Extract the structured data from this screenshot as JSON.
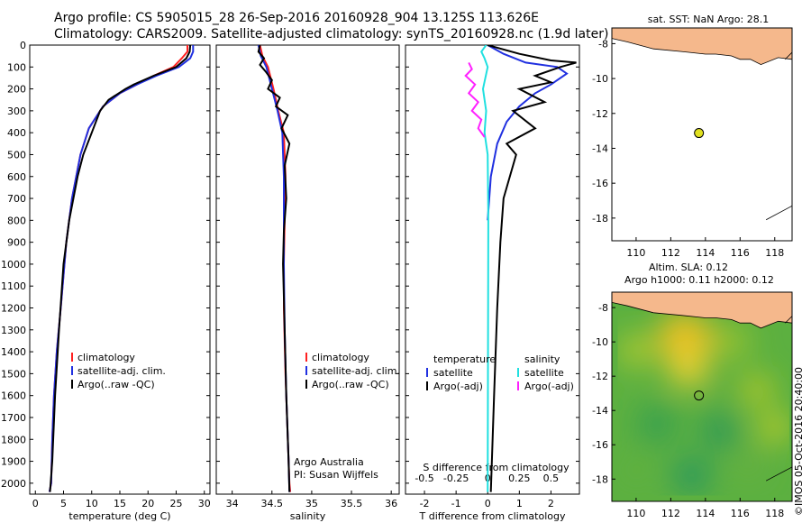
{
  "header": {
    "line1": "Argo profile: CS 5905015_28 26-Sep-2016 20160928_904 13.125S 113.626E",
    "line2": "Climatology: CARS2009. Satellite-adjusted climatology: synTS_20160928.nc (1.9d later)"
  },
  "credit": "©IMOS 05-Oct-2016 20:40:00",
  "colors": {
    "clim": "#ff2020",
    "sat": "#2030e0",
    "argo": "#000000",
    "sal_sat": "#20e0e0",
    "sal_argo": "#ff20ff",
    "land": "#f5b88c",
    "float": "#e0e020"
  },
  "chart_data": [
    {
      "type": "line",
      "xlabel": "temperature (deg C)",
      "ylim": [
        2050,
        0
      ],
      "xlim": [
        -1,
        31
      ],
      "xticks": [
        0,
        5,
        10,
        15,
        20,
        25,
        30
      ],
      "yticks": [
        0,
        100,
        200,
        300,
        400,
        500,
        600,
        700,
        800,
        900,
        1000,
        1100,
        1200,
        1300,
        1400,
        1500,
        1600,
        1700,
        1800,
        1900,
        2000
      ],
      "legend": [
        "climatology",
        "satellite-adj. clim.",
        "Argo(..raw -QC)"
      ],
      "series": [
        {
          "name": "climatology",
          "color": "#ff2020",
          "x": [
            27,
            27,
            26,
            24.5,
            21,
            18,
            15,
            12,
            9.5,
            8,
            6.5,
            5.5,
            4.5,
            3.8,
            3.3,
            3,
            2.8,
            2.5
          ],
          "y": [
            0,
            30,
            60,
            100,
            140,
            180,
            220,
            280,
            380,
            500,
            700,
            900,
            1200,
            1400,
            1600,
            1800,
            2000,
            2040
          ]
        },
        {
          "name": "satellite-adj. clim.",
          "color": "#2030e0",
          "x": [
            28,
            28,
            27.5,
            25.5,
            21.5,
            18,
            15,
            12,
            9.5,
            8,
            6.5,
            5.5,
            4.5,
            3.8,
            3.3,
            3,
            2.8,
            2.5
          ],
          "y": [
            0,
            30,
            60,
            100,
            140,
            180,
            220,
            280,
            380,
            500,
            700,
            900,
            1200,
            1400,
            1600,
            1800,
            2000,
            2040
          ]
        },
        {
          "name": "Argo(..raw -QC)",
          "color": "#000000",
          "x": [
            27.5,
            27.4,
            26.8,
            25,
            21,
            17.5,
            16,
            13,
            11.5,
            10,
            8.5,
            7.5,
            6,
            5,
            4.2,
            3.5,
            3,
            2.6
          ],
          "y": [
            0,
            30,
            60,
            100,
            140,
            180,
            200,
            250,
            300,
            400,
            500,
            600,
            800,
            1000,
            1300,
            1600,
            1900,
            2040
          ]
        }
      ]
    },
    {
      "type": "line",
      "xlabel": "salinity",
      "ylim": [
        2050,
        0
      ],
      "xlim": [
        33.8,
        36.1
      ],
      "xticks": [
        34,
        34.5,
        35,
        35.5,
        36
      ],
      "legend": [
        "climatology",
        "satellite-adj. clim.",
        "Argo(..raw -QC)"
      ],
      "annotations": [
        "Argo Australia",
        "PI: Susan Wijffels"
      ],
      "series": [
        {
          "name": "climatology",
          "color": "#ff2020",
          "x": [
            34.35,
            34.38,
            34.45,
            34.52,
            34.58,
            34.65,
            34.67,
            34.66,
            34.65,
            34.65,
            34.67,
            34.7,
            34.72,
            34.73
          ],
          "y": [
            0,
            50,
            100,
            200,
            300,
            400,
            600,
            800,
            1000,
            1200,
            1500,
            1800,
            2000,
            2040
          ]
        },
        {
          "name": "satellite-adj. clim.",
          "color": "#2030e0",
          "x": [
            34.33,
            34.36,
            34.43,
            34.5,
            34.57,
            34.63,
            34.65,
            34.65,
            34.65,
            34.66,
            34.68,
            34.71,
            34.72
          ],
          "y": [
            0,
            50,
            100,
            200,
            300,
            400,
            600,
            800,
            1000,
            1300,
            1600,
            1900,
            2040
          ]
        },
        {
          "name": "Argo(..raw -QC)",
          "color": "#000000",
          "x": [
            34.35,
            34.33,
            34.4,
            34.35,
            34.42,
            34.5,
            34.45,
            34.6,
            34.55,
            34.7,
            34.62,
            34.72,
            34.66,
            34.68,
            34.65,
            34.64,
            34.66,
            34.68,
            34.71,
            34.72
          ],
          "y": [
            0,
            30,
            60,
            90,
            120,
            160,
            200,
            240,
            280,
            320,
            380,
            450,
            550,
            700,
            850,
            1000,
            1300,
            1600,
            1900,
            2040
          ]
        }
      ]
    },
    {
      "type": "line",
      "xlabel": "T difference from climatology",
      "xlabel_top": "S difference from climatology",
      "ylim": [
        2050,
        0
      ],
      "xlim": [
        -2.6,
        2.9
      ],
      "xticks": [
        -2,
        -1,
        0,
        1,
        2
      ],
      "xticks_top": [
        "-0.5",
        "-0.25",
        "0",
        "0.25",
        "0.5"
      ],
      "legend": [
        "temperature",
        "satellite",
        "Argo(-adj)",
        "salinity",
        "satellite",
        "Argo(-adj)"
      ],
      "series": [
        {
          "name": "temperature satellite",
          "color": "#2030e0",
          "x": [
            0,
            0.5,
            1.2,
            2.2,
            2.5,
            2,
            1.5,
            1,
            0.6,
            0.3,
            0.1,
            0
          ],
          "y": [
            0,
            40,
            80,
            100,
            130,
            180,
            220,
            280,
            350,
            450,
            600,
            800
          ]
        },
        {
          "name": "temperature Argo(-adj)",
          "color": "#000000",
          "x": [
            0,
            1,
            2,
            2.8,
            2.3,
            1.5,
            2,
            1,
            1.8,
            0.8,
            1.5,
            0.6,
            0.9,
            0.5,
            0.4,
            0.3,
            0.2,
            0.1
          ],
          "y": [
            0,
            40,
            70,
            80,
            100,
            140,
            170,
            200,
            260,
            300,
            380,
            450,
            500,
            700,
            900,
            1200,
            1600,
            2040
          ]
        },
        {
          "name": "salinity satellite",
          "color": "#20e0e0",
          "x": [
            -0.05,
            -0.2,
            -0.1,
            0,
            -0.15,
            -0.05,
            -0.1,
            0,
            0.02,
            0
          ],
          "y": [
            0,
            30,
            60,
            100,
            200,
            300,
            400,
            500,
            800,
            2040
          ]
        },
        {
          "name": "salinity Argo(-adj)",
          "color": "#ff20ff",
          "x": [
            -0.6,
            -0.5,
            -0.7,
            -0.4,
            -0.6,
            -0.3,
            -0.5,
            -0.2,
            -0.3,
            -0.1
          ],
          "y": [
            80,
            110,
            140,
            180,
            220,
            260,
            300,
            340,
            380,
            420
          ]
        }
      ]
    },
    {
      "type": "map",
      "title": "sat. SST: NaN Argo: 28.1",
      "xticks": [
        110,
        112,
        114,
        116,
        118
      ],
      "yticks": [
        -8,
        -10,
        -12,
        -14,
        -16,
        -18
      ],
      "xlim": [
        108.6,
        119.0
      ],
      "ylim": [
        -19.3,
        -7.1
      ],
      "marker": {
        "lon": 113.626,
        "lat": -13.125
      }
    },
    {
      "type": "heatmap",
      "title_line1": "Altim. SLA: 0.12",
      "title_line2": "Argo h1000: 0.11 h2000: 0.12",
      "xticks": [
        110,
        112,
        114,
        116,
        118
      ],
      "yticks": [
        -8,
        -10,
        -12,
        -14,
        -16,
        -18
      ],
      "xlim": [
        108.6,
        119.0
      ],
      "ylim": [
        -19.3,
        -7.1
      ],
      "marker": {
        "lon": 113.626,
        "lat": -13.125
      }
    }
  ]
}
